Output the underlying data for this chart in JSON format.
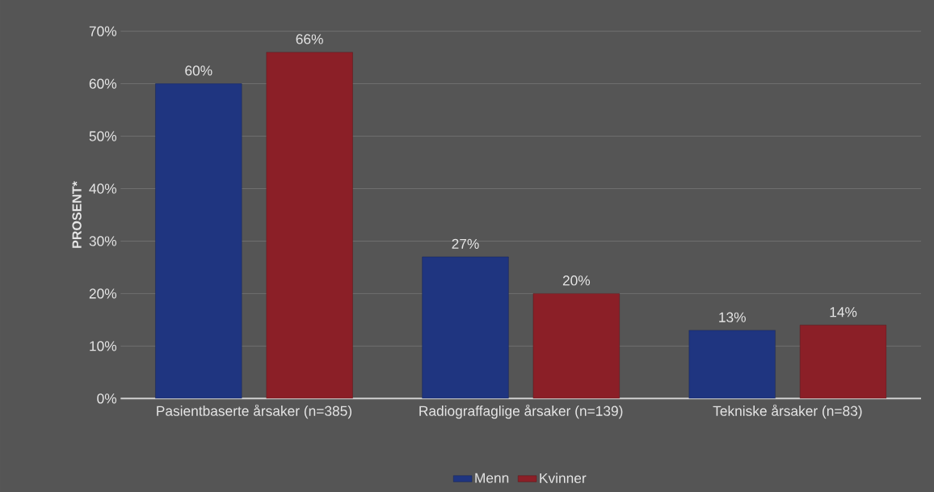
{
  "chart_data": {
    "type": "bar",
    "ylabel": "PROSENT*",
    "categories": [
      "Pasientbaserte årsaker (n=385)",
      "Radiograffaglige årsaker (n=139)",
      "Tekniske årsaker (n=83)"
    ],
    "series": [
      {
        "name": "Menn",
        "color": "#1f3580",
        "values": [
          60,
          27,
          13
        ],
        "value_labels": [
          "60%",
          "27%",
          "13%"
        ]
      },
      {
        "name": "Kvinner",
        "color": "#8b1f27",
        "values": [
          66,
          20,
          14
        ],
        "value_labels": [
          "66%",
          "20%",
          "14%"
        ]
      }
    ],
    "ylim": [
      0,
      70
    ],
    "yticks": [
      {
        "value": 0,
        "label": "0%"
      },
      {
        "value": 10,
        "label": "10%"
      },
      {
        "value": 20,
        "label": "20%"
      },
      {
        "value": 30,
        "label": "30%"
      },
      {
        "value": 40,
        "label": "40%"
      },
      {
        "value": 50,
        "label": "50%"
      },
      {
        "value": 60,
        "label": "60%"
      },
      {
        "value": 70,
        "label": "70%"
      }
    ],
    "grid": "y",
    "legend": "bottom"
  }
}
